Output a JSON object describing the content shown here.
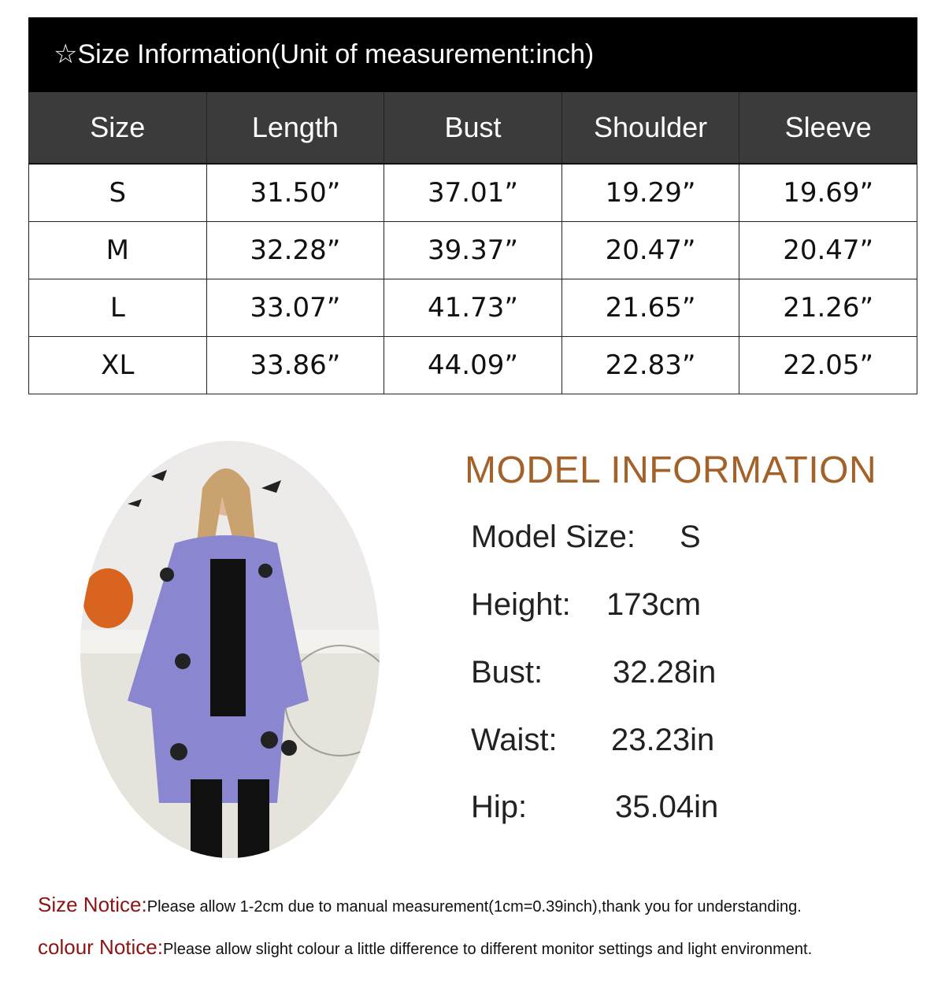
{
  "size_chart": {
    "title": "☆Size Information(Unit of measurement:inch)",
    "columns": [
      "Size",
      "Length",
      "Bust",
      "Shoulder",
      "Sleeve"
    ],
    "rows": [
      [
        "S",
        "31.50”",
        "37.01”",
        "19.29”",
        "19.69”"
      ],
      [
        "M",
        "32.28”",
        "39.37”",
        "20.47”",
        "20.47”"
      ],
      [
        "L",
        "33.07”",
        "41.73”",
        "21.65”",
        "21.26”"
      ],
      [
        "XL",
        "33.86”",
        "44.09”",
        "22.83”",
        "22.05”"
      ]
    ]
  },
  "model_info": {
    "title": "MODEL INFORMATION",
    "items": [
      {
        "label": "Model Size:",
        "value": "S"
      },
      {
        "label": "Height:",
        "value": "173cm"
      },
      {
        "label": "Bust:",
        "value": "32.28in"
      },
      {
        "label": "Waist:",
        "value": "23.23in"
      },
      {
        "label": "Hip:",
        "value": "35.04in"
      }
    ]
  },
  "notices": [
    {
      "label": "Size Notice:",
      "text": "Please allow 1-2cm due to manual measurement(1cm=0.39inch),thank you for understanding."
    },
    {
      "label": "colour Notice:",
      "text": "Please allow slight colour a little difference to different monitor settings and light environment."
    }
  ],
  "colors": {
    "title_bar": "#000000",
    "header_row": "#3b3b3b",
    "model_title": "#a2622a",
    "notice_label": "#8b1414",
    "cardigan": "#8a86d0"
  }
}
